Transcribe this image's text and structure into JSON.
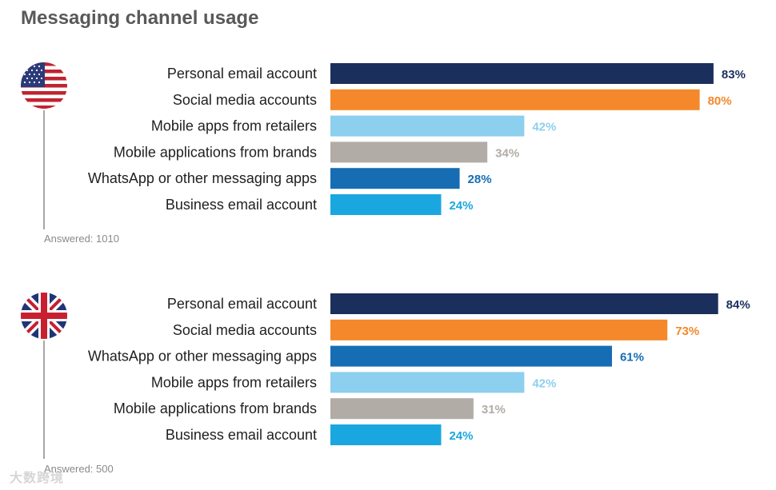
{
  "title": "Messaging channel usage",
  "watermark": "大数跨境",
  "colors": {
    "personal_email": "#1b2f5c",
    "social_media": "#f4882a",
    "retailer_apps": "#8ccfee",
    "brand_apps": "#b2aca7",
    "whatsapp": "#166db3",
    "business_email": "#1aa7e0"
  },
  "chart_data": [
    {
      "type": "bar",
      "orientation": "horizontal",
      "country": "United States",
      "flag": "us-flag-icon",
      "answered": "Answered: 1010",
      "xlim": [
        0,
        100
      ],
      "categories": [
        "Personal email account",
        "Social media accounts",
        "Mobile apps from retailers",
        "Mobile applications from brands",
        "WhatsApp or other messaging apps",
        "Business email account"
      ],
      "values": [
        83,
        80,
        42,
        34,
        28,
        24
      ],
      "labels": [
        "83%",
        "80%",
        "42%",
        "34%",
        "28%",
        "24%"
      ],
      "colors": [
        "#1b2f5c",
        "#f4882a",
        "#8ccfee",
        "#b2aca7",
        "#166db3",
        "#1aa7e0"
      ]
    },
    {
      "type": "bar",
      "orientation": "horizontal",
      "country": "United Kingdom",
      "flag": "uk-flag-icon",
      "answered": "Answered: 500",
      "xlim": [
        0,
        100
      ],
      "categories": [
        "Personal email account",
        "Social media accounts",
        "WhatsApp or other messaging apps",
        "Mobile apps from retailers",
        "Mobile applications from brands",
        "Business email account"
      ],
      "values": [
        84,
        73,
        61,
        42,
        31,
        24
      ],
      "labels": [
        "84%",
        "73%",
        "61%",
        "42%",
        "31%",
        "24%"
      ],
      "colors": [
        "#1b2f5c",
        "#f4882a",
        "#166db3",
        "#8ccfee",
        "#b2aca7",
        "#1aa7e0"
      ]
    }
  ]
}
